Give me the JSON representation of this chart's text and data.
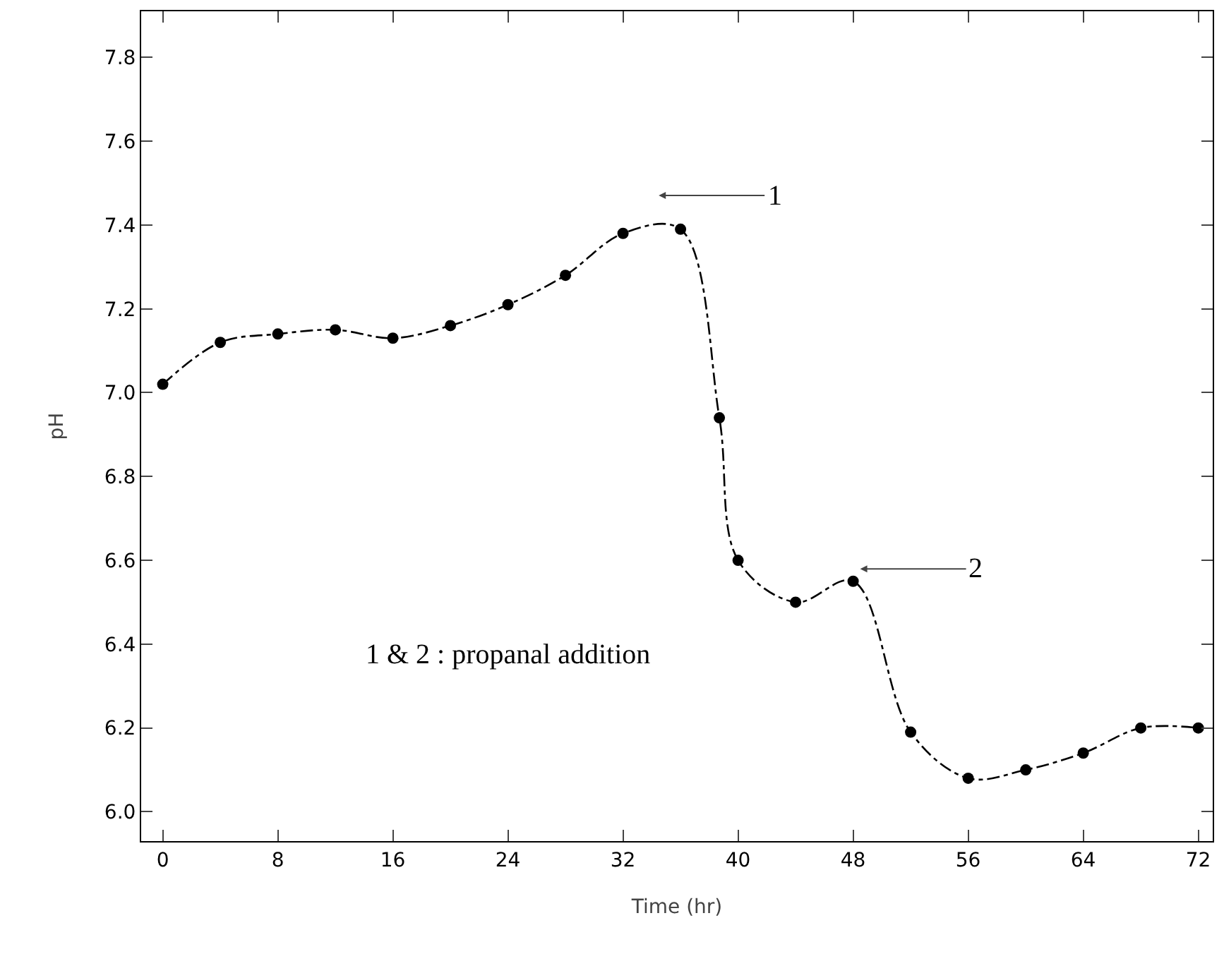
{
  "chart_data": {
    "type": "line",
    "xlabel": "Time (hr)",
    "ylabel": "pH",
    "x": [
      0,
      4,
      8,
      12,
      16,
      20,
      24,
      28,
      32,
      36,
      38.7,
      40,
      44,
      48,
      52,
      56,
      60,
      64,
      68,
      72
    ],
    "series": [
      {
        "color": "#000000",
        "values": [
          7.02,
          7.12,
          7.14,
          7.15,
          7.13,
          7.16,
          7.21,
          7.28,
          7.38,
          7.39,
          6.94,
          6.6,
          6.5,
          6.55,
          6.19,
          6.08,
          6.1,
          6.14,
          6.2,
          6.2
        ]
      }
    ],
    "xlim": [
      -1.5,
      73
    ],
    "xticks": [
      0,
      8,
      16,
      24,
      32,
      40,
      48,
      56,
      64,
      72
    ],
    "ylim": [
      5.93,
      7.91
    ],
    "yticks": [
      {
        "value": 6,
        "label": "6.0"
      },
      6.2,
      6.4,
      6.6,
      6.8,
      {
        "value": 7,
        "label": "7.0"
      },
      7.2,
      7.4,
      7.6,
      7.8
    ],
    "annotations": [
      "1",
      "2",
      "1 & 2 : propanal addition"
    ],
    "marker": "circle",
    "line_style": "dashed"
  }
}
